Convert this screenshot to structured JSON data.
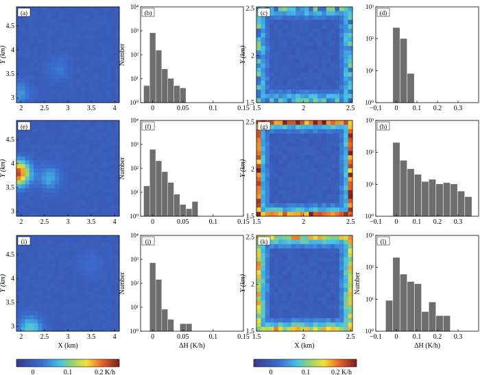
{
  "figure": {
    "units": {
      "x": "X (km)",
      "y": "Y (km)",
      "dh": "ΔH (K/h)"
    },
    "colorbar_left": {
      "ticks": [
        "0",
        "0.1",
        "0.2 K/h"
      ],
      "range": [
        -0.05,
        0.25
      ]
    },
    "colorbar_right": {
      "ticks": [
        "0",
        "0.1",
        "0.2 K/h"
      ],
      "range": [
        -0.05,
        0.25
      ]
    }
  },
  "chart_data": [
    {
      "id": "a",
      "type": "heatmap",
      "panel_label": "(a)",
      "xticks": [
        "2",
        "2.5",
        "3",
        "3.5",
        "4"
      ],
      "yticks": [
        "3",
        "3.5",
        "4",
        "4.5"
      ],
      "ylabel": "Y (km)",
      "xlabel": "",
      "xlim": [
        1.9,
        4.1
      ],
      "ylim": [
        2.9,
        4.9
      ],
      "pattern": "whole-domain",
      "highlights": [
        {
          "x": 1.95,
          "y": 3.1,
          "value": 0.05
        },
        {
          "x": 2.8,
          "y": 3.6,
          "value": 0.03
        }
      ],
      "background": 0.0
    },
    {
      "id": "b",
      "type": "bar",
      "panel_label": "(b)",
      "scale": "log",
      "ylabel": "Number",
      "xlabel": "",
      "xticks": [
        "0",
        "0.05",
        "0.1",
        "0.15"
      ],
      "xlim": [
        -0.02,
        0.15
      ],
      "ylim_exp": [
        0,
        4
      ],
      "yticks": [
        "10⁰",
        "10¹",
        "10²",
        "10³",
        "10⁴"
      ],
      "bin_width": 0.01,
      "x": [
        -0.01,
        0.0,
        0.01,
        0.02,
        0.03,
        0.04,
        0.05
      ],
      "values": [
        5,
        800,
        150,
        25,
        10,
        5,
        4
      ]
    },
    {
      "id": "c",
      "type": "heatmap",
      "panel_label": "(c)",
      "xticks": [
        "1.5",
        "2",
        "2.5"
      ],
      "yticks": [
        "1.5",
        "2",
        "2.5"
      ],
      "ylabel": "Y (km)",
      "xlabel": "",
      "xlim": [
        1.5,
        2.52
      ],
      "ylim": [
        1.5,
        2.52
      ],
      "pattern": "boundary-frame",
      "frame_value": 0.06,
      "outer_value": 0.06,
      "background": 0.0
    },
    {
      "id": "d",
      "type": "bar",
      "panel_label": "(d)",
      "scale": "log",
      "ylabel": "",
      "xlabel": "",
      "xticks": [
        "−0.1",
        "0",
        "0.1",
        "0.2",
        "0.3"
      ],
      "xlim": [
        -0.1,
        0.4
      ],
      "ylim_exp": [
        0,
        3
      ],
      "yticks": [
        "10⁰",
        "10¹",
        "10²",
        "10³"
      ],
      "bin_width": 0.035,
      "x": [
        0.0,
        0.035,
        0.07
      ],
      "values": [
        220,
        100,
        8
      ]
    },
    {
      "id": "e",
      "type": "heatmap",
      "panel_label": "(e)",
      "xticks": [
        "2",
        "2.5",
        "3",
        "3.5",
        "4"
      ],
      "yticks": [
        "3",
        "3.5",
        "4",
        "4.5"
      ],
      "ylabel": "Y (km)",
      "xlabel": "",
      "xlim": [
        1.9,
        4.1
      ],
      "ylim": [
        2.9,
        4.9
      ],
      "pattern": "whole-domain",
      "highlights": [
        {
          "x": 1.93,
          "y": 3.8,
          "value": 0.22
        },
        {
          "x": 2.6,
          "y": 3.7,
          "value": 0.06
        }
      ],
      "background": 0.0
    },
    {
      "id": "f",
      "type": "bar",
      "panel_label": "(f)",
      "scale": "log",
      "ylabel": "Number",
      "xlabel": "",
      "xticks": [
        "0",
        "0.05",
        "0.1",
        "0.15"
      ],
      "xlim": [
        -0.02,
        0.15
      ],
      "ylim_exp": [
        0,
        4
      ],
      "yticks": [
        "10⁰",
        "10¹",
        "10²",
        "10³",
        "10⁴"
      ],
      "bin_width": 0.01,
      "x": [
        -0.01,
        0.0,
        0.01,
        0.02,
        0.03,
        0.04,
        0.05,
        0.06,
        0.07
      ],
      "values": [
        18,
        600,
        200,
        70,
        25,
        8,
        3,
        2,
        4
      ]
    },
    {
      "id": "g",
      "type": "heatmap",
      "panel_label": "(g)",
      "xticks": [
        "1.5",
        "2",
        "2.5"
      ],
      "yticks": [
        "1.5",
        "2",
        "2.5"
      ],
      "ylabel": "Y (km)",
      "xlabel": "",
      "xlim": [
        1.5,
        2.52
      ],
      "ylim": [
        1.5,
        2.52
      ],
      "pattern": "boundary-frame",
      "frame_value": 0.07,
      "outer_value": 0.2,
      "background": 0.0
    },
    {
      "id": "h",
      "type": "bar",
      "panel_label": "(h)",
      "scale": "log",
      "ylabel": "",
      "xlabel": "",
      "xticks": [
        "−0.1",
        "0",
        "0.1",
        "0.2",
        "0.3"
      ],
      "xlim": [
        -0.1,
        0.4
      ],
      "ylim_exp": [
        0,
        3
      ],
      "yticks": [
        "10⁰",
        "10¹",
        "10²",
        "10³"
      ],
      "bin_width": 0.035,
      "x": [
        0.0,
        0.035,
        0.07,
        0.105,
        0.14,
        0.175,
        0.21,
        0.245,
        0.28,
        0.315,
        0.35
      ],
      "values": [
        200,
        55,
        30,
        20,
        12,
        14,
        10,
        11,
        10,
        6,
        4
      ]
    },
    {
      "id": "i",
      "type": "heatmap",
      "panel_label": "(i)",
      "xticks": [
        "2",
        "2.5",
        "3",
        "3.5",
        "4"
      ],
      "yticks": [
        "3",
        "3.5",
        "4",
        "4.5"
      ],
      "ylabel": "Y (km)",
      "xlabel": "X (km)",
      "xlim": [
        1.9,
        4.1
      ],
      "ylim": [
        2.9,
        4.9
      ],
      "pattern": "whole-domain",
      "highlights": [
        {
          "x": 2.2,
          "y": 2.95,
          "value": 0.09
        },
        {
          "x": 3.5,
          "y": 4.3,
          "value": 0.02
        }
      ],
      "background": 0.0
    },
    {
      "id": "j",
      "type": "bar",
      "panel_label": "(j)",
      "scale": "log",
      "ylabel": "Number",
      "xlabel": "ΔH (K/h)",
      "xticks": [
        "0",
        "0.05",
        "0.1",
        "0.15"
      ],
      "xlim": [
        -0.02,
        0.15
      ],
      "ylim_exp": [
        0,
        4
      ],
      "yticks": [
        "10⁰",
        "10¹",
        "10²",
        "10³",
        "10⁴"
      ],
      "bin_width": 0.01,
      "x": [
        0.0,
        0.01,
        0.02,
        0.03,
        0.04,
        0.05,
        0.06,
        0.1,
        0.12
      ],
      "values": [
        700,
        140,
        8,
        3,
        1,
        2,
        2,
        1,
        1
      ]
    },
    {
      "id": "k",
      "type": "heatmap",
      "panel_label": "(k)",
      "xticks": [
        "1.5",
        "2",
        "2.5"
      ],
      "yticks": [
        "1.5",
        "2",
        "2.5"
      ],
      "ylabel": "Y (km)",
      "xlabel": "X (km)",
      "xlim": [
        1.5,
        2.52
      ],
      "ylim": [
        1.5,
        2.52
      ],
      "pattern": "boundary-frame",
      "frame_value": 0.08,
      "outer_value": 0.14,
      "background": 0.0
    },
    {
      "id": "l",
      "type": "bar",
      "panel_label": "(l)",
      "scale": "log",
      "ylabel": "Number",
      "xlabel": "ΔH (K/h)",
      "xticks": [
        "−0.1",
        "0",
        "0.1",
        "0.2",
        "0.3"
      ],
      "xlim": [
        -0.1,
        0.4
      ],
      "ylim_exp": [
        0,
        3
      ],
      "yticks": [
        "10⁰",
        "10¹",
        "10²",
        "10³"
      ],
      "bin_width": 0.035,
      "x": [
        -0.035,
        0.0,
        0.035,
        0.07,
        0.105,
        0.14,
        0.175,
        0.21,
        0.245
      ],
      "values": [
        9,
        200,
        60,
        35,
        30,
        4,
        8,
        3,
        3
      ]
    }
  ]
}
